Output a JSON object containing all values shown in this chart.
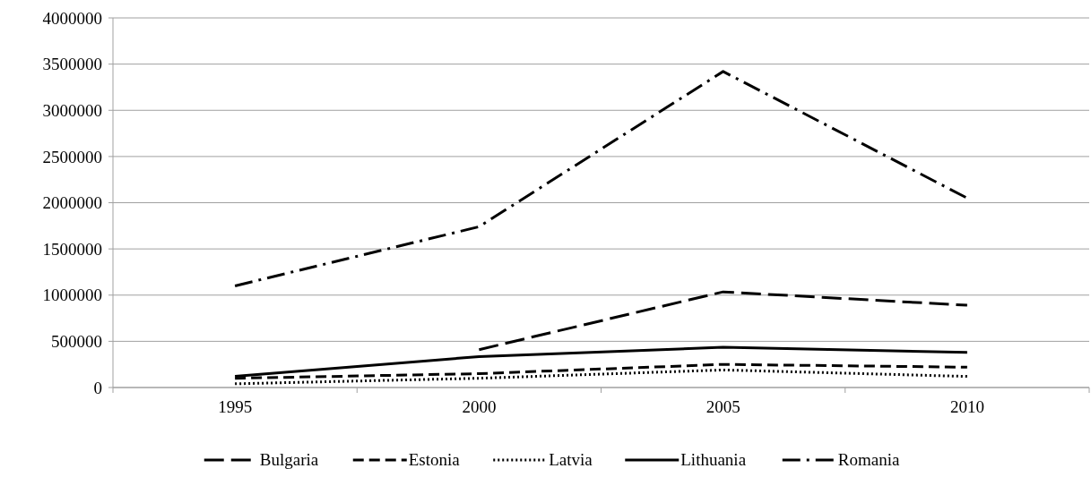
{
  "chart_data": {
    "type": "line",
    "categories": [
      "1995",
      "2000",
      "2005",
      "2010"
    ],
    "series": [
      {
        "name": "Bulgaria",
        "color": "#000000",
        "line_style": "longdash",
        "values": [
          null,
          410000,
          1035000,
          890000
        ]
      },
      {
        "name": "Estonia",
        "color": "#000000",
        "line_style": "dashed",
        "values": [
          100000,
          150000,
          250000,
          220000
        ]
      },
      {
        "name": "Latvia",
        "color": "#000000",
        "line_style": "dotted",
        "values": [
          40000,
          100000,
          190000,
          120000
        ]
      },
      {
        "name": "Lithuania",
        "color": "#000000",
        "line_style": "solid",
        "values": [
          120000,
          335000,
          435000,
          380000
        ]
      },
      {
        "name": "Romania",
        "color": "#000000",
        "line_style": "dashdot",
        "values": [
          1100000,
          1740000,
          3420000,
          2050000
        ]
      }
    ],
    "ylim": [
      0,
      4000000
    ],
    "yticks": [
      0,
      500000,
      1000000,
      1500000,
      2000000,
      2500000,
      3000000,
      3500000,
      4000000
    ],
    "grid": "y",
    "legend": "bottom",
    "marker": "none"
  }
}
